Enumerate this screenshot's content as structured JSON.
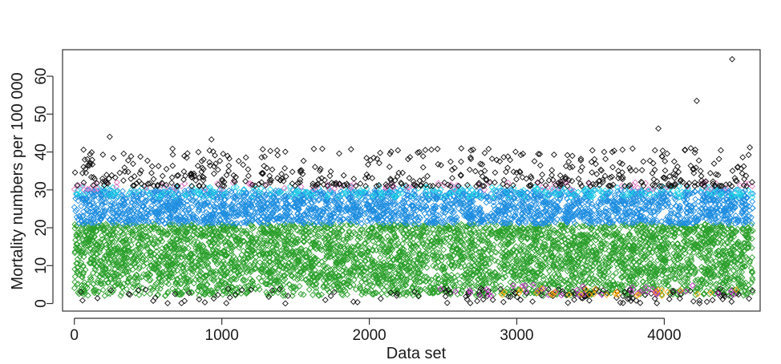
{
  "chart_data": {
    "type": "scatter",
    "title": "",
    "xlabel": "Data set",
    "ylabel": "Mortality numbers per 100 000",
    "xlim": [
      -80,
      4650
    ],
    "ylim": [
      -2,
      67
    ],
    "xticks": [
      0,
      1000,
      2000,
      3000,
      4000
    ],
    "yticks": [
      0,
      10,
      20,
      30,
      40,
      50,
      60
    ],
    "grid": false,
    "legend": "none",
    "marker": "open-diamond",
    "n_points": 4600,
    "series": [
      {
        "color": "#2ca02c",
        "y_range": [
          2,
          21
        ],
        "description_values": "dense band between about 2 and 21"
      },
      {
        "color": "#1f8ee0",
        "y_range": [
          21,
          30
        ],
        "description_values": "dense band between about 21 and 30"
      },
      {
        "color": "#22d3e6",
        "y_range": [
          28,
          31
        ],
        "description_values": "scattered near 29-30"
      },
      {
        "color": "#e377c2",
        "y_range": [
          30,
          32
        ],
        "description_values": "scattered near 31"
      },
      {
        "color": "#111111",
        "y_range": [
          0,
          65
        ],
        "outliers": [
          {
            "x": 4460,
            "y": 64.5
          },
          {
            "x": 4220,
            "y": 53.5
          },
          {
            "x": 3960,
            "y": 46.2
          },
          {
            "x": 240,
            "y": 44
          },
          {
            "x": 930,
            "y": 43.3
          },
          {
            "x": 4580,
            "y": 41.2
          },
          {
            "x": 4180,
            "y": 41
          }
        ]
      },
      {
        "color": "#cc33cc",
        "y_range": [
          2,
          5
        ],
        "description_values": "scattered near 3-4 mostly x 2400-4500"
      },
      {
        "color": "#ffa500",
        "y_range": [
          2,
          4
        ],
        "description_values": "scattered near 3 mostly x 2900-4500"
      }
    ]
  }
}
